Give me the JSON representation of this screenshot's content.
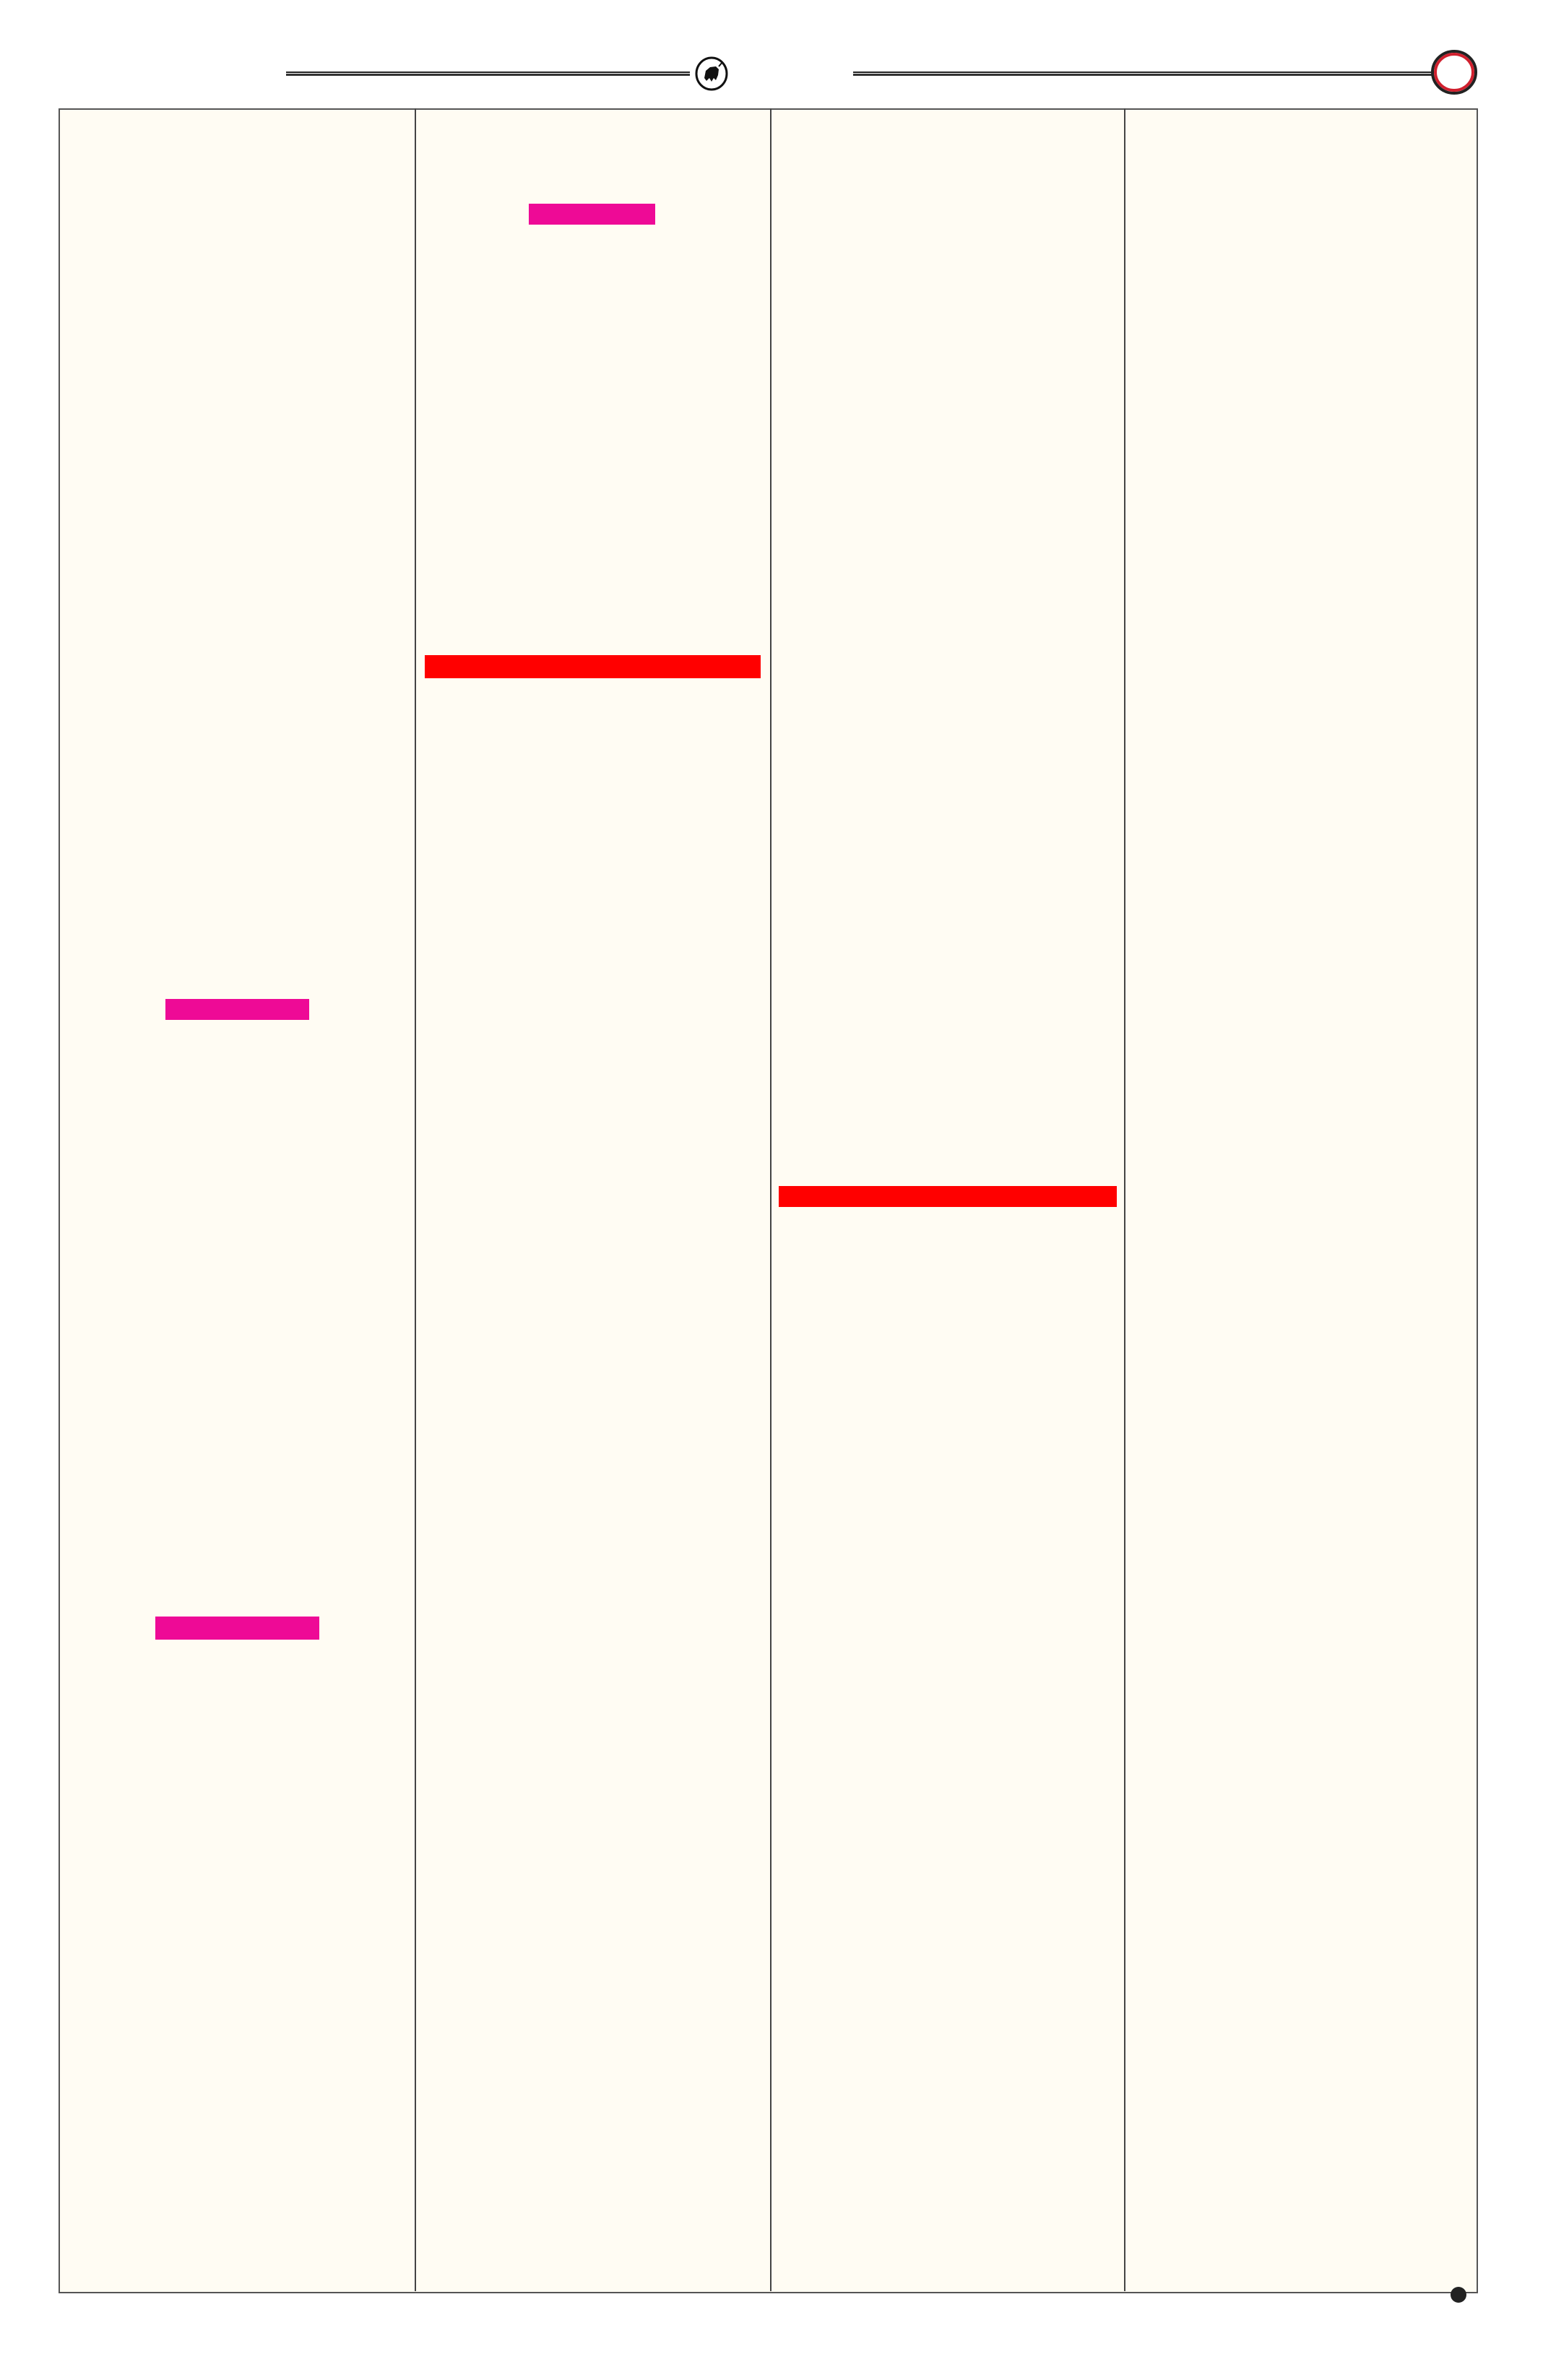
{
  "header": {
    "emblem_icon": "bull-emblem-icon",
    "page_marker_icon": "circle-marker-icon",
    "marker_color": "#d0202e"
  },
  "page": {
    "background_color": "#fffcf3",
    "columns": 4
  },
  "redactions": {
    "pink_color": "#ee0a96",
    "red_color": "#ff0000"
  },
  "footer": {
    "dot_icon": "bullet-dot-icon"
  }
}
